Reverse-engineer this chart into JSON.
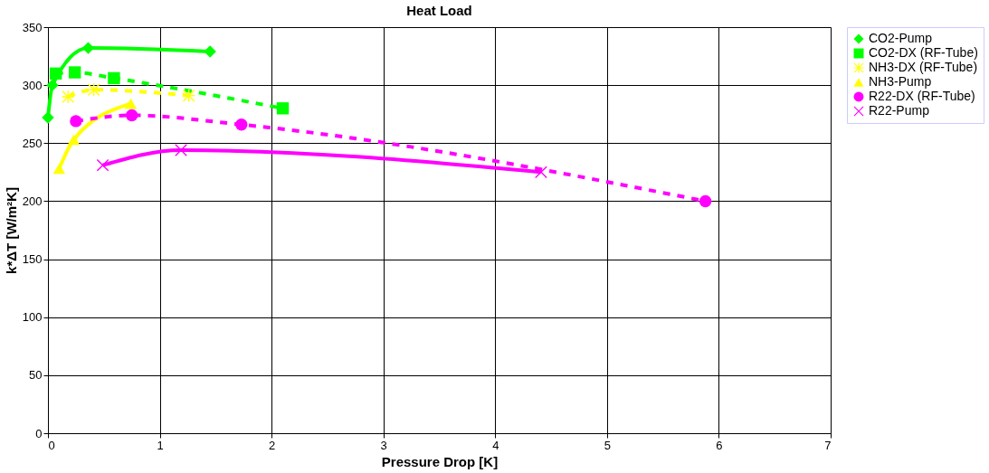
{
  "chart_data": {
    "type": "line",
    "title": "Heat Load",
    "xlabel": "Pressure Drop  [K]",
    "ylabel": "k*ΔT [W/m²K]",
    "xlim": [
      0,
      7
    ],
    "xticks": [
      0,
      1,
      2,
      3,
      4,
      5,
      6,
      7
    ],
    "ylim": [
      0,
      350
    ],
    "yticks": [
      0,
      50,
      100,
      150,
      200,
      250,
      300,
      350
    ],
    "grid": true,
    "legend": "right",
    "series": [
      {
        "name": "CO2-Pump",
        "color": "#00ff00",
        "marker": "diamond",
        "line_style": "solid",
        "x": [
          0.0,
          0.04,
          0.36,
          1.45
        ],
        "values": [
          272,
          300,
          332,
          329
        ]
      },
      {
        "name": "CO2-DX (RF-Tube)",
        "color": "#00ff00",
        "marker": "square",
        "line_style": "dashed",
        "x": [
          0.07,
          0.24,
          0.59,
          2.1
        ],
        "values": [
          310,
          311,
          306,
          280
        ]
      },
      {
        "name": "NH3-DX (RF-Tube)",
        "color": "#ffff00",
        "marker": "star",
        "line_style": "dashed",
        "x": [
          0.18,
          0.41,
          1.26
        ],
        "values": [
          290,
          296,
          291
        ]
      },
      {
        "name": "NH3-Pump",
        "color": "#ffff00",
        "marker": "triangle",
        "line_style": "solid",
        "x": [
          0.1,
          0.23,
          0.74
        ],
        "values": [
          228,
          253,
          284
        ]
      },
      {
        "name": "R22-DX (RF-Tube)",
        "color": "#ff00ff",
        "marker": "circle",
        "line_style": "dashed",
        "x": [
          0.25,
          0.75,
          1.73,
          5.88
        ],
        "values": [
          269,
          274,
          266,
          200
        ]
      },
      {
        "name": "R22-Pump",
        "color": "#ff00ff",
        "marker": "cross",
        "line_style": "solid",
        "x": [
          0.49,
          1.19,
          4.41
        ],
        "values": [
          231,
          244,
          225
        ]
      }
    ]
  }
}
